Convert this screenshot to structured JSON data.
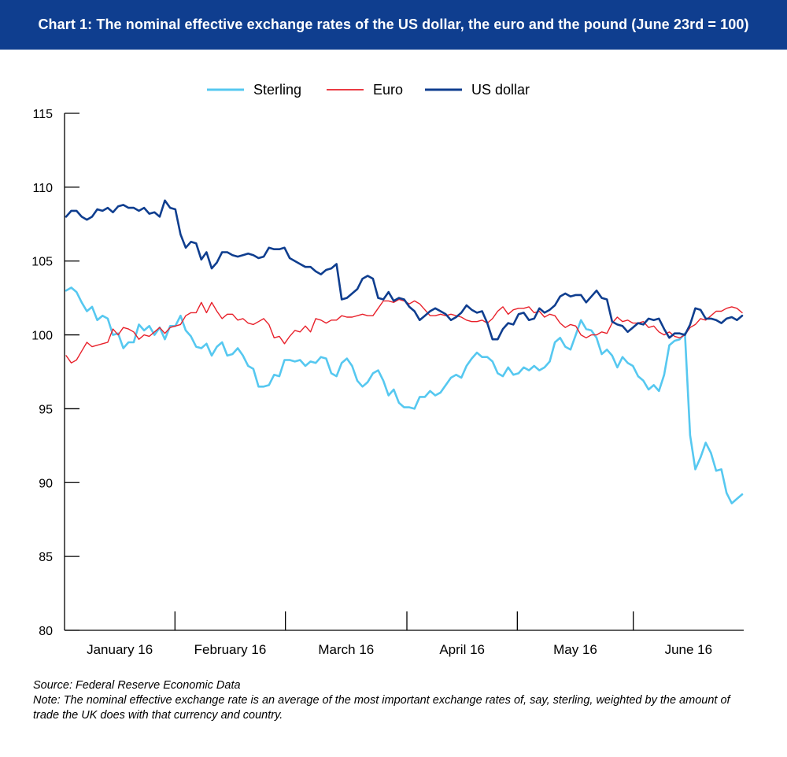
{
  "title": "Chart 1: The nominal effective exchange rates of the US dollar, the euro and the pound (June 23rd = 100)",
  "source": "Source: Federal Reserve Economic Data",
  "note": "Note: The nominal effective exchange rate is an average of the most important exchange rates of, say, sterling, weighted by the amount of trade the UK does with that currency and country.",
  "colors": {
    "title_bar": "#0f3e8f",
    "sterling": "#56c8f0",
    "euro": "#e8202a",
    "usd": "#0f3e8f"
  },
  "chart_data": {
    "type": "line",
    "title": "Chart 1: The nominal effective exchange rates of the US dollar, the euro and the pound (June 23rd = 100)",
    "xlabel": "",
    "ylabel": "",
    "ylim": [
      80,
      115
    ],
    "yticks": [
      80,
      85,
      90,
      95,
      100,
      105,
      110,
      115
    ],
    "months": [
      "January 16",
      "February 16",
      "March 16",
      "April 16",
      "May 16",
      "June 16"
    ],
    "trading_days_per_month": [
      20,
      20,
      22,
      20,
      21,
      20
    ],
    "grid": false,
    "legend": "top",
    "series": [
      {
        "name": "Sterling",
        "values": [
          103.0,
          103.2,
          102.9,
          102.2,
          101.6,
          101.9,
          101.0,
          101.3,
          101.1,
          100.0,
          100.1,
          99.1,
          99.5,
          99.5,
          100.7,
          100.3,
          100.6,
          100.0,
          100.5,
          99.7,
          100.6,
          100.6,
          101.3,
          100.3,
          99.9,
          99.2,
          99.1,
          99.4,
          98.6,
          99.2,
          99.5,
          98.6,
          98.7,
          99.1,
          98.6,
          97.9,
          97.7,
          96.5,
          96.5,
          96.6,
          97.3,
          97.2,
          98.3,
          98.3,
          98.2,
          98.3,
          97.9,
          98.2,
          98.1,
          98.5,
          98.4,
          97.4,
          97.2,
          98.1,
          98.4,
          97.9,
          96.9,
          96.5,
          96.8,
          97.4,
          97.6,
          96.9,
          95.9,
          96.3,
          95.4,
          95.1,
          95.1,
          95.0,
          95.8,
          95.8,
          96.2,
          95.9,
          96.1,
          96.6,
          97.1,
          97.3,
          97.1,
          97.9,
          98.4,
          98.8,
          98.5,
          98.5,
          98.2,
          97.4,
          97.2,
          97.8,
          97.3,
          97.4,
          97.8,
          97.6,
          97.9,
          97.6,
          97.8,
          98.2,
          99.5,
          99.8,
          99.2,
          99.0,
          100.0,
          101.0,
          100.4,
          100.3,
          99.8,
          98.7,
          99.0,
          98.6,
          97.8,
          98.5,
          98.1,
          97.9,
          97.2,
          96.9,
          96.3,
          96.6,
          96.2,
          97.3,
          99.3,
          99.6,
          99.7,
          100.1,
          93.2,
          90.9,
          91.7,
          92.7,
          92.0,
          90.8,
          90.9,
          89.3,
          88.6,
          88.9,
          89.2
        ]
      },
      {
        "name": "Euro",
        "values": [
          98.6,
          98.1,
          98.3,
          98.9,
          99.5,
          99.2,
          99.3,
          99.4,
          99.5,
          100.4,
          100.0,
          100.5,
          100.4,
          100.2,
          99.7,
          100.0,
          99.9,
          100.2,
          100.5,
          100.1,
          100.5,
          100.6,
          100.7,
          101.3,
          101.5,
          101.5,
          102.2,
          101.5,
          102.2,
          101.6,
          101.1,
          101.4,
          101.4,
          101.0,
          101.1,
          100.8,
          100.7,
          100.9,
          101.1,
          100.7,
          99.8,
          99.9,
          99.4,
          99.9,
          100.3,
          100.2,
          100.6,
          100.2,
          101.1,
          101.0,
          100.8,
          101.0,
          101.0,
          101.3,
          101.2,
          101.2,
          101.3,
          101.4,
          101.3,
          101.3,
          101.8,
          102.3,
          102.3,
          102.2,
          102.4,
          102.3,
          102.1,
          102.3,
          102.1,
          101.7,
          101.3,
          101.3,
          101.4,
          101.3,
          101.4,
          101.3,
          101.2,
          101.0,
          100.9,
          100.9,
          101.0,
          100.8,
          101.1,
          101.6,
          101.9,
          101.4,
          101.7,
          101.8,
          101.8,
          101.9,
          101.5,
          101.6,
          101.2,
          101.4,
          101.3,
          100.8,
          100.5,
          100.7,
          100.6,
          100.0,
          99.8,
          100.0,
          100.0,
          100.2,
          100.1,
          100.8,
          101.2,
          100.9,
          101.0,
          100.8,
          100.8,
          100.9,
          100.5,
          100.6,
          100.2,
          100.0,
          100.2,
          99.9,
          99.8,
          100.0,
          100.5,
          100.7,
          101.1,
          101.0,
          101.3,
          101.6,
          101.6,
          101.8,
          101.9,
          101.8,
          101.5
        ]
      },
      {
        "name": "US dollar",
        "values": [
          108.0,
          108.4,
          108.4,
          108.0,
          107.8,
          108.0,
          108.5,
          108.4,
          108.6,
          108.3,
          108.7,
          108.8,
          108.6,
          108.6,
          108.4,
          108.6,
          108.2,
          108.3,
          108.0,
          109.1,
          108.6,
          108.5,
          106.8,
          105.9,
          106.3,
          106.2,
          105.1,
          105.6,
          104.5,
          104.9,
          105.6,
          105.6,
          105.4,
          105.3,
          105.4,
          105.5,
          105.4,
          105.2,
          105.3,
          105.9,
          105.8,
          105.8,
          105.9,
          105.2,
          105.0,
          104.8,
          104.6,
          104.6,
          104.3,
          104.1,
          104.4,
          104.5,
          104.8,
          102.4,
          102.5,
          102.8,
          103.1,
          103.8,
          104.0,
          103.8,
          102.5,
          102.4,
          102.9,
          102.3,
          102.5,
          102.4,
          101.9,
          101.6,
          101.0,
          101.3,
          101.6,
          101.8,
          101.6,
          101.4,
          101.0,
          101.2,
          101.5,
          102.0,
          101.7,
          101.5,
          101.6,
          100.8,
          99.7,
          99.7,
          100.4,
          100.8,
          100.7,
          101.4,
          101.5,
          101.0,
          101.1,
          101.8,
          101.5,
          101.7,
          102.0,
          102.6,
          102.8,
          102.6,
          102.7,
          102.7,
          102.2,
          102.6,
          103.0,
          102.5,
          102.4,
          100.9,
          100.7,
          100.6,
          100.2,
          100.5,
          100.8,
          100.7,
          101.1,
          101.0,
          101.1,
          100.4,
          99.8,
          100.1,
          100.1,
          100.0,
          100.7,
          101.8,
          101.7,
          101.1,
          101.1,
          101.0,
          100.8,
          101.1,
          101.2,
          101.0,
          101.3
        ]
      }
    ]
  }
}
